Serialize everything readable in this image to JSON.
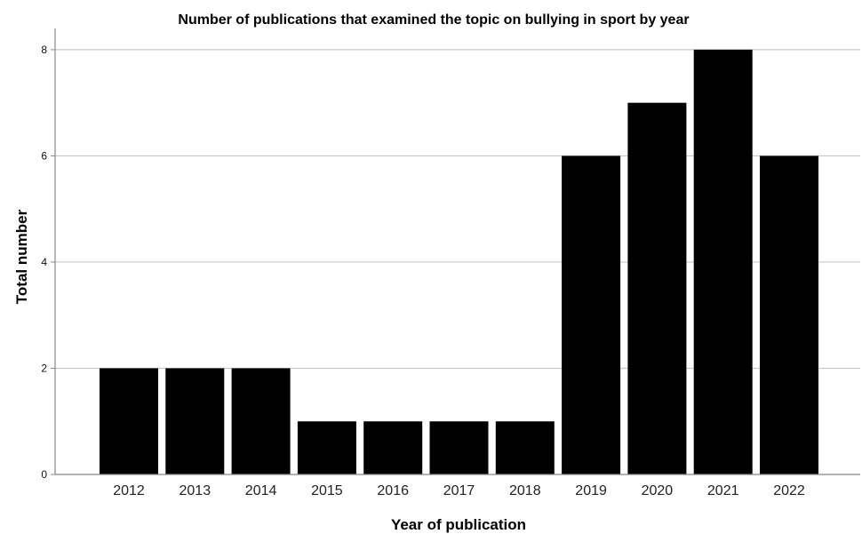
{
  "chart_data": {
    "type": "bar",
    "title": "Number of publications that examined the topic on bullying in sport by year",
    "xlabel": "Year of publication",
    "ylabel": "Total number",
    "categories": [
      "2012",
      "2013",
      "2014",
      "2015",
      "2016",
      "2017",
      "2018",
      "2019",
      "2020",
      "2021",
      "2022"
    ],
    "values": [
      2,
      2,
      2,
      1,
      1,
      1,
      1,
      6,
      7,
      8,
      6
    ],
    "ylim": [
      0,
      8.4
    ],
    "yticks": [
      0,
      2,
      4,
      6,
      8
    ],
    "grid": true,
    "legend": "none",
    "bar_color": "#000000",
    "gridline_color": "#c8c8c8",
    "axis_color": "#888888"
  }
}
